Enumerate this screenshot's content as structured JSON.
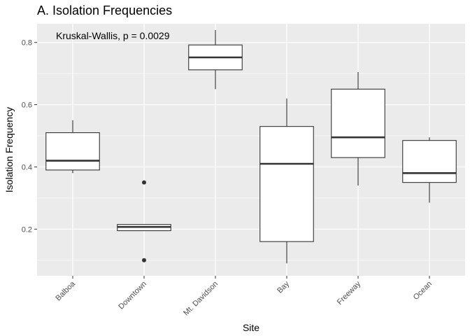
{
  "chart_data": {
    "type": "boxplot",
    "title": "A. Isolation Frequencies",
    "annotation": "Kruskal-Wallis, p = 0.0029",
    "xlabel": "Site",
    "ylabel": "Isolation Frequency",
    "ylim": [
      0.05,
      0.86
    ],
    "yticks": [
      0.2,
      0.4,
      0.6,
      0.8
    ],
    "ytick_labels": [
      "0.2",
      "0.4",
      "0.6",
      "0.8"
    ],
    "grid": true,
    "background": "#ebebeb",
    "gridline_color": "#ffffff",
    "box_fill": "#ffffff",
    "box_stroke": "#333333",
    "categories": [
      "Balboa",
      "Downtown",
      "Mt. Davidson",
      "Bay",
      "Freeway",
      "Ocean"
    ],
    "boxes": [
      {
        "category": "Balboa",
        "lower_whisker": 0.38,
        "q1": 0.39,
        "median": 0.42,
        "q3": 0.51,
        "upper_whisker": 0.55,
        "outliers": []
      },
      {
        "category": "Downtown",
        "lower_whisker": 0.195,
        "q1": 0.195,
        "median": 0.207,
        "q3": 0.215,
        "upper_whisker": 0.215,
        "outliers": [
          0.35,
          0.1
        ]
      },
      {
        "category": "Mt. Davidson",
        "lower_whisker": 0.65,
        "q1": 0.712,
        "median": 0.752,
        "q3": 0.792,
        "upper_whisker": 0.84,
        "outliers": []
      },
      {
        "category": "Bay",
        "lower_whisker": 0.09,
        "q1": 0.16,
        "median": 0.41,
        "q3": 0.53,
        "upper_whisker": 0.62,
        "outliers": []
      },
      {
        "category": "Freeway",
        "lower_whisker": 0.34,
        "q1": 0.43,
        "median": 0.495,
        "q3": 0.65,
        "upper_whisker": 0.705,
        "outliers": []
      },
      {
        "category": "Ocean",
        "lower_whisker": 0.285,
        "q1": 0.35,
        "median": 0.38,
        "q3": 0.485,
        "upper_whisker": 0.495,
        "outliers": []
      }
    ]
  }
}
